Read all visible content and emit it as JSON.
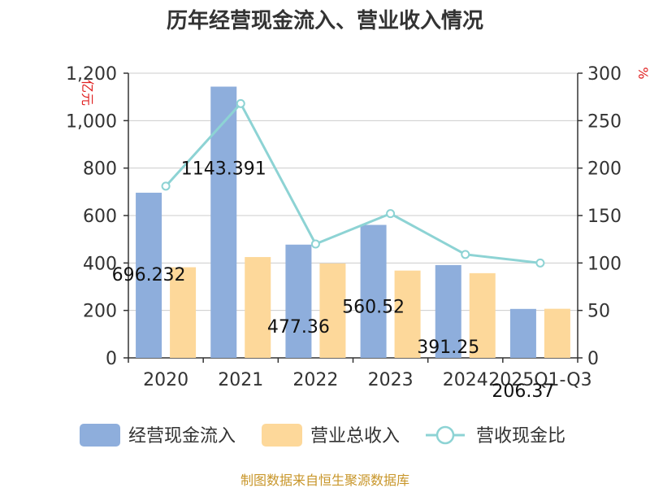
{
  "chart_data": {
    "type": "bar",
    "title": "历年经营现金流入、营业收入情况",
    "categories": [
      "2020",
      "2021",
      "2022",
      "2023",
      "2024",
      "2025Q1-Q3"
    ],
    "series": [
      {
        "name": "经营现金流入",
        "type": "bar",
        "axis": "left",
        "color": "#8eaedc",
        "values": [
          696.232,
          1143.391,
          477.36,
          560.52,
          391.25,
          206.37
        ],
        "labels": [
          "696.232",
          "1143.391",
          "477.36",
          "560.52",
          "391.25",
          "206.37"
        ]
      },
      {
        "name": "营业总收入",
        "type": "bar",
        "axis": "left",
        "color": "#fdd89a",
        "values": [
          382,
          425,
          398,
          368,
          357,
          207
        ]
      },
      {
        "name": "营收现金比",
        "type": "line",
        "axis": "right",
        "color": "#8dd3d4",
        "values": [
          181,
          268,
          120,
          152,
          109,
          100
        ]
      }
    ],
    "y_left": {
      "unit": "亿元",
      "min": 0,
      "max": 1200,
      "ticks": [
        "0",
        "200",
        "400",
        "600",
        "800",
        "1,000",
        "1,200"
      ]
    },
    "y_right": {
      "unit": "%",
      "min": 0,
      "max": 300,
      "ticks": [
        "0",
        "50",
        "100",
        "150",
        "200",
        "250",
        "300"
      ]
    },
    "grid": true,
    "legend_position": "bottom"
  },
  "source": "制图数据来自恒生聚源数据库"
}
